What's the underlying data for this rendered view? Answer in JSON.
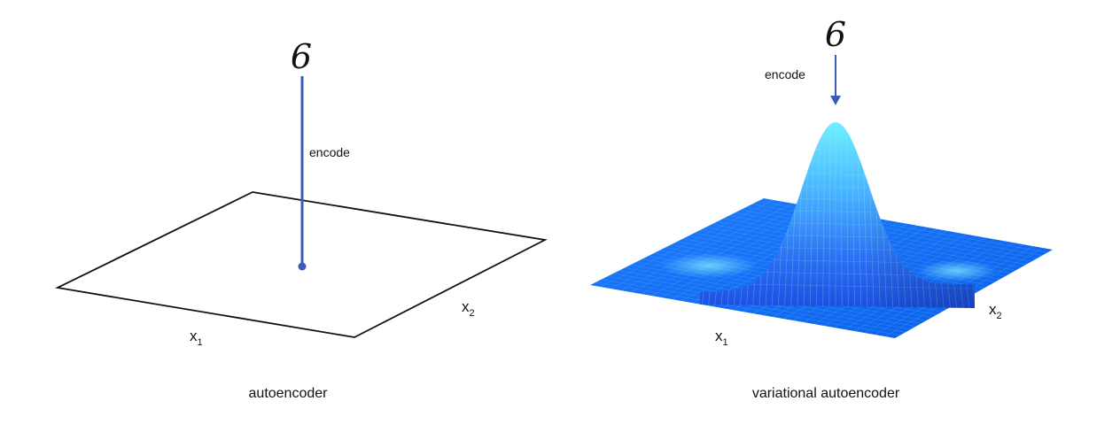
{
  "left_panel": {
    "digit": "6",
    "arrow_label": "encode",
    "axis_x1": "x",
    "axis_x1_sub": "1",
    "axis_x2": "x",
    "axis_x2_sub": "2",
    "caption": "autoencoder"
  },
  "right_panel": {
    "digit": "6",
    "arrow_label": "encode",
    "axis_x1": "x",
    "axis_x1_sub": "1",
    "axis_x2": "x",
    "axis_x2_sub": "2",
    "caption": "variational autoencoder"
  },
  "colors": {
    "arrow": "#3a5bb8",
    "plane_outline": "#111111",
    "surface_base": "#1a73ff",
    "surface_peak": "#5fe6ff",
    "mesh": "#7fd8ff"
  }
}
